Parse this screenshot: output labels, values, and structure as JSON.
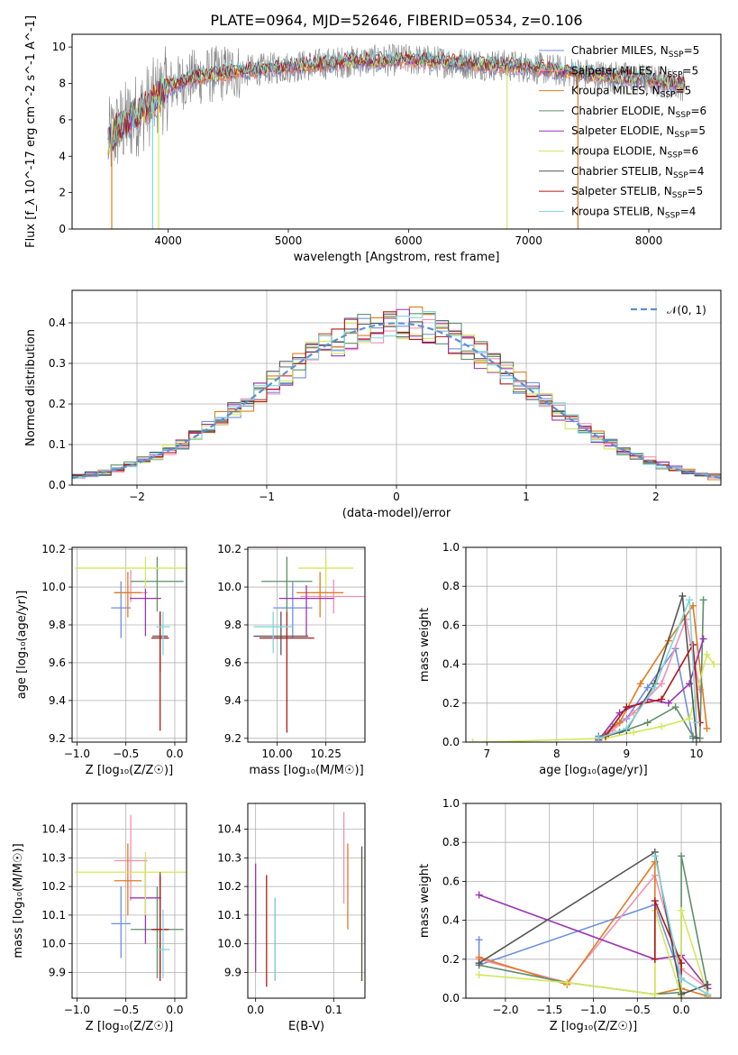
{
  "title": "PLATE=0964, MJD=52646, FIBERID=0534, z=0.106",
  "models": [
    {
      "name": "Chabrier MILES",
      "nssp": "5",
      "color": "#6f8fdc"
    },
    {
      "name": "Salpeter MILES",
      "nssp": "5",
      "color": "#f48fb1"
    },
    {
      "name": "Kroupa MILES",
      "nssp": "5",
      "color": "#e07b22"
    },
    {
      "name": "Chabrier ELODIE",
      "nssp": "6",
      "color": "#5f8f6a"
    },
    {
      "name": "Salpeter ELODIE",
      "nssp": "5",
      "color": "#9a34b4"
    },
    {
      "name": "Kroupa ELODIE",
      "nssp": "6",
      "color": "#d4e85a"
    },
    {
      "name": "Chabrier STELIB",
      "nssp": "4",
      "color": "#555555"
    },
    {
      "name": "Salpeter STELIB",
      "nssp": "5",
      "color": "#b01818"
    },
    {
      "name": "Kroupa STELIB",
      "nssp": "4",
      "color": "#7fd6dc"
    }
  ],
  "chart_data": [
    {
      "type": "line",
      "panel": "spectrum",
      "xlabel": "wavelength [Angstrom, rest frame]",
      "ylabel": "Flux [f_λ 10^-17 erg cm^-2 s^-1 A^-1]",
      "xlim": [
        3200,
        8600
      ],
      "ylim": [
        0,
        10.7
      ],
      "xticks": [
        4000,
        5000,
        6000,
        7000,
        8000
      ],
      "yticks": [
        0,
        2,
        4,
        6,
        8,
        10
      ],
      "grid": false,
      "legend": "right",
      "data_envelope": {
        "x": [
          3500,
          3600,
          3800,
          4000,
          4200,
          4500,
          5000,
          5500,
          6000,
          6500,
          7000,
          7500,
          8000,
          8300
        ],
        "y": [
          4.8,
          5.6,
          6.6,
          7.8,
          8.3,
          8.6,
          8.9,
          9.2,
          9.3,
          9.1,
          8.9,
          8.5,
          8.2,
          7.9
        ]
      }
    },
    {
      "type": "bar",
      "panel": "residual-histogram",
      "xlabel": "(data-model)/error",
      "ylabel": "Normed distribution",
      "xlim": [
        -2.5,
        2.5
      ],
      "ylim": [
        0,
        0.48
      ],
      "xticks": [
        -2,
        -1,
        0,
        1,
        2
      ],
      "yticks": [
        0.0,
        0.1,
        0.2,
        0.3,
        0.4
      ],
      "grid": true,
      "legend": "top-right",
      "reference_label": "𝒩(0, 1)",
      "bin_width": 0.1
    },
    {
      "type": "scatter",
      "panel": "age-vs-Z",
      "xlabel": "Z [log₁₀(Z/Z☉)]",
      "ylabel": "age  [log₁₀(age/yr)]",
      "xlim": [
        -1.05,
        0.12
      ],
      "ylim": [
        9.18,
        10.21
      ],
      "xticks": [
        -1.0,
        -0.5,
        0.0
      ],
      "yticks": [
        9.2,
        9.4,
        9.6,
        9.8,
        10.0,
        10.2
      ],
      "grid": true,
      "points": [
        {
          "x": -0.55,
          "xerr": 0.1,
          "y": 9.89,
          "ylo": 9.73,
          "yhi": 10.03
        },
        {
          "x": -0.45,
          "xerr": 0.17,
          "y": 9.97,
          "ylo": 9.92,
          "yhi": 10.09
        },
        {
          "x": -0.48,
          "xerr": 0.14,
          "y": 9.97,
          "ylo": 9.84,
          "yhi": 10.08
        },
        {
          "x": -0.18,
          "xerr": 0.27,
          "y": 10.03,
          "ylo": 9.87,
          "yhi": 10.16
        },
        {
          "x": -0.3,
          "xerr": 0.16,
          "y": 9.94,
          "ylo": 9.74,
          "yhi": 10.01
        },
        {
          "x": -0.3,
          "xerr": 0.72,
          "y": 10.1,
          "ylo": 9.99,
          "yhi": 10.16
        },
        {
          "x": -0.15,
          "xerr": 0.08,
          "y": 9.74,
          "ylo": 9.55,
          "yhi": 9.87
        },
        {
          "x": -0.15,
          "xerr": 0.09,
          "y": 9.73,
          "ylo": 9.24,
          "yhi": 9.87
        },
        {
          "x": -0.12,
          "xerr": 0.07,
          "y": 9.79,
          "ylo": 9.64,
          "yhi": 9.87
        }
      ]
    },
    {
      "type": "scatter",
      "panel": "age-vs-mass",
      "xlabel": "mass [log₁₀(M/M☉)]",
      "ylabel": "",
      "xlim": [
        9.85,
        10.45
      ],
      "ylim": [
        9.18,
        10.21
      ],
      "xticks": [
        10.0,
        10.25
      ],
      "xticklabels": [
        "10.00",
        "10.25"
      ],
      "yticks": [
        9.2,
        9.4,
        9.6,
        9.8,
        10.0,
        10.2
      ],
      "grid": true,
      "points": [
        {
          "x": 10.08,
          "xerr": 0.1,
          "y": 9.89,
          "ylo": 9.73,
          "yhi": 10.03
        },
        {
          "x": 10.29,
          "xerr": 0.17,
          "y": 9.95,
          "ylo": 9.86,
          "yhi": 10.04
        },
        {
          "x": 10.22,
          "xerr": 0.12,
          "y": 9.97,
          "ylo": 9.84,
          "yhi": 10.08
        },
        {
          "x": 10.05,
          "xerr": 0.13,
          "y": 10.03,
          "ylo": 9.87,
          "yhi": 10.16
        },
        {
          "x": 10.15,
          "xerr": 0.14,
          "y": 9.94,
          "ylo": 9.74,
          "yhi": 10.01
        },
        {
          "x": 10.25,
          "xerr": 0.14,
          "y": 10.1,
          "ylo": 9.99,
          "yhi": 10.16
        },
        {
          "x": 10.02,
          "xerr": 0.14,
          "y": 9.74,
          "ylo": 9.64,
          "yhi": 9.87
        },
        {
          "x": 10.05,
          "xerr": 0.14,
          "y": 9.73,
          "ylo": 9.23,
          "yhi": 9.87
        },
        {
          "x": 9.98,
          "xerr": 0.1,
          "y": 9.79,
          "ylo": 9.65,
          "yhi": 9.87
        }
      ]
    },
    {
      "type": "line",
      "panel": "mass-weight-vs-age",
      "xlabel": "age  [log₁₀(age/yr)]",
      "ylabel": "mass weight",
      "xlim": [
        6.7,
        10.35
      ],
      "ylim": [
        0,
        1.0
      ],
      "xticks": [
        7,
        8,
        9,
        10
      ],
      "yticks": [
        0.0,
        0.2,
        0.4,
        0.6,
        0.8,
        1.0
      ],
      "grid": true,
      "series": [
        {
          "x": [
            8.6,
            8.8,
            9.0,
            9.3,
            9.7,
            9.95
          ],
          "y": [
            0.01,
            0.08,
            0.12,
            0.28,
            0.48,
            0.02
          ]
        },
        {
          "x": [
            8.6,
            8.8,
            9.1,
            9.5,
            9.85,
            10.05
          ],
          "y": [
            0.01,
            0.06,
            0.15,
            0.3,
            0.63,
            0.27
          ]
        },
        {
          "x": [
            8.6,
            8.9,
            9.2,
            9.6,
            9.95,
            10.15
          ],
          "y": [
            0.02,
            0.1,
            0.3,
            0.52,
            0.7,
            0.07
          ]
        },
        {
          "x": [
            8.6,
            8.9,
            9.3,
            9.7,
            9.95,
            10.05,
            10.1
          ],
          "y": [
            0.03,
            0.05,
            0.1,
            0.18,
            0.03,
            0.02,
            0.73
          ]
        },
        {
          "x": [
            8.6,
            8.9,
            9.3,
            9.6,
            9.9,
            10.1
          ],
          "y": [
            0.01,
            0.15,
            0.22,
            0.2,
            0.3,
            0.53
          ]
        },
        {
          "x": [
            6.8,
            7.0,
            8.7,
            9.1,
            9.5,
            9.9,
            10.15,
            10.25
          ],
          "y": [
            0.0,
            0.0,
            0.02,
            0.05,
            0.08,
            0.12,
            0.45,
            0.4
          ]
        },
        {
          "x": [
            8.6,
            9.0,
            9.4,
            9.8,
            10.0
          ],
          "y": [
            0.02,
            0.06,
            0.3,
            0.75,
            0.02
          ]
        },
        {
          "x": [
            8.7,
            9.0,
            9.5,
            9.95,
            10.05
          ],
          "y": [
            0.03,
            0.18,
            0.22,
            0.5,
            0.1
          ]
        },
        {
          "x": [
            8.6,
            9.0,
            9.4,
            9.9,
            10.0
          ],
          "y": [
            0.02,
            0.07,
            0.28,
            0.73,
            0.1
          ]
        }
      ]
    },
    {
      "type": "scatter",
      "panel": "mass-vs-Z",
      "xlabel": "Z [log₁₀(Z/Z☉)]",
      "ylabel": "mass [log₁₀(M/M☉)]",
      "xlim": [
        -1.05,
        0.12
      ],
      "ylim": [
        9.81,
        10.49
      ],
      "xticks": [
        -1.0,
        -0.5,
        0.0
      ],
      "yticks": [
        9.9,
        10.0,
        10.1,
        10.2,
        10.3,
        10.4
      ],
      "grid": true,
      "points": [
        {
          "x": -0.55,
          "xerr": 0.1,
          "y": 10.07,
          "ylo": 9.95,
          "yhi": 10.2
        },
        {
          "x": -0.45,
          "xerr": 0.17,
          "y": 10.29,
          "ylo": 10.15,
          "yhi": 10.45
        },
        {
          "x": -0.48,
          "xerr": 0.14,
          "y": 10.22,
          "ylo": 10.1,
          "yhi": 10.35
        },
        {
          "x": -0.18,
          "xerr": 0.27,
          "y": 10.05,
          "ylo": 9.88,
          "yhi": 10.2
        },
        {
          "x": -0.3,
          "xerr": 0.16,
          "y": 10.16,
          "ylo": 10.0,
          "yhi": 10.3
        },
        {
          "x": -0.3,
          "xerr": 0.72,
          "y": 10.25,
          "ylo": 10.1,
          "yhi": 10.32
        },
        {
          "x": -0.15,
          "xerr": 0.08,
          "y": 10.05,
          "ylo": 9.9,
          "yhi": 10.25
        },
        {
          "x": -0.15,
          "xerr": 0.09,
          "y": 10.05,
          "ylo": 9.87,
          "yhi": 10.24
        },
        {
          "x": -0.12,
          "xerr": 0.07,
          "y": 9.98,
          "ylo": 9.88,
          "yhi": 10.12
        }
      ]
    },
    {
      "type": "scatter",
      "panel": "mass-vs-EBV",
      "xlabel": "E(B-V)",
      "ylabel": "",
      "xlim": [
        -0.01,
        0.14
      ],
      "ylim": [
        9.81,
        10.49
      ],
      "xticks": [
        0.0,
        0.1
      ],
      "xticklabels": [
        "0.0",
        "0.1"
      ],
      "yticks": [
        9.9,
        10.0,
        10.1,
        10.2,
        10.3,
        10.4
      ],
      "grid": true,
      "points": [
        {
          "x": 0.0,
          "ylo": 10.0,
          "yhi": 10.2
        },
        {
          "x": 0.113,
          "ylo": 10.14,
          "yhi": 10.46
        },
        {
          "x": 0.118,
          "ylo": 10.05,
          "yhi": 10.35
        },
        {
          "x": 0.025,
          "ylo": 9.87,
          "yhi": 10.16
        },
        {
          "x": 0.0,
          "ylo": 9.9,
          "yhi": 10.28
        },
        {
          "x": 0.136,
          "ylo": 9.87,
          "yhi": 10.31
        },
        {
          "x": 0.136,
          "ylo": 9.87,
          "yhi": 10.34
        },
        {
          "x": 0.014,
          "ylo": 9.85,
          "yhi": 10.24
        },
        {
          "x": 0.025,
          "ylo": 9.87,
          "yhi": 10.16
        }
      ]
    },
    {
      "type": "line",
      "panel": "mass-weight-vs-Z",
      "xlabel": "Z [log₁₀(Z/Z☉)]",
      "ylabel": "mass weight",
      "xlim": [
        -2.45,
        0.45
      ],
      "ylim": [
        0,
        1.0
      ],
      "xticks": [
        -2.0,
        -1.5,
        -1.0,
        -0.5,
        0.0
      ],
      "yticks": [
        0.0,
        0.2,
        0.4,
        0.6,
        0.8,
        1.0
      ],
      "grid": true,
      "series": [
        {
          "x": [
            -2.3,
            -2.3,
            -0.3,
            0.0,
            0.3
          ],
          "y": [
            0.3,
            0.17,
            0.48,
            0.1,
            0.02
          ]
        },
        {
          "x": [
            -2.3,
            -1.3,
            -0.3,
            0.0,
            0.3
          ],
          "y": [
            0.2,
            0.08,
            0.63,
            0.15,
            0.05
          ]
        },
        {
          "x": [
            -2.3,
            -1.3,
            -0.3,
            -0.3,
            0.0,
            0.3
          ],
          "y": [
            0.21,
            0.07,
            0.7,
            0.02,
            0.05,
            0.01
          ]
        },
        {
          "x": [
            -2.3,
            -1.3,
            -0.3,
            0.0,
            0.0,
            0.3
          ],
          "y": [
            0.17,
            0.08,
            0.02,
            0.03,
            0.73,
            0.05
          ]
        },
        {
          "x": [
            -2.3,
            -0.3,
            0.0,
            0.3
          ],
          "y": [
            0.53,
            0.2,
            0.22,
            0.05
          ]
        },
        {
          "x": [
            -2.3,
            -1.3,
            -0.3,
            -0.3,
            0.0,
            0.0,
            0.3
          ],
          "y": [
            0.12,
            0.08,
            0.02,
            0.45,
            0.01,
            0.45,
            0.02
          ]
        },
        {
          "x": [
            -2.3,
            -0.3,
            0.0,
            0.3
          ],
          "y": [
            0.18,
            0.75,
            0.02,
            0.07
          ]
        },
        {
          "x": [
            -0.3,
            -0.3,
            0.0,
            0.0
          ],
          "y": [
            0.2,
            0.5,
            0.18,
            0.1
          ]
        },
        {
          "x": [
            -0.3,
            0.0,
            0.3
          ],
          "y": [
            0.73,
            0.1,
            0.02
          ]
        }
      ]
    }
  ]
}
